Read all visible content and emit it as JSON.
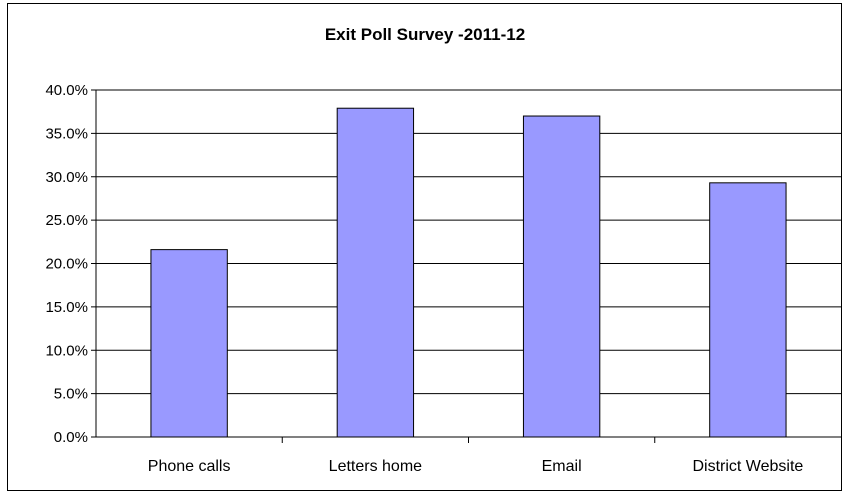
{
  "chart_data": {
    "type": "bar",
    "title": "Exit Poll Survey -2011-12",
    "xlabel": "",
    "ylabel": "",
    "categories": [
      "Phone calls",
      "Letters home",
      "Email",
      "District Website"
    ],
    "values": [
      21.6,
      37.9,
      37.0,
      29.3
    ],
    "ylim": [
      0,
      40
    ],
    "ytick_step": 5,
    "ytick_labels": [
      "0.0%",
      "5.0%",
      "10.0%",
      "15.0%",
      "20.0%",
      "25.0%",
      "30.0%",
      "35.0%",
      "40.0%"
    ],
    "grid": true,
    "legend": "none",
    "bar_color": "#9999ff",
    "bar_edge_color": "#000000"
  }
}
